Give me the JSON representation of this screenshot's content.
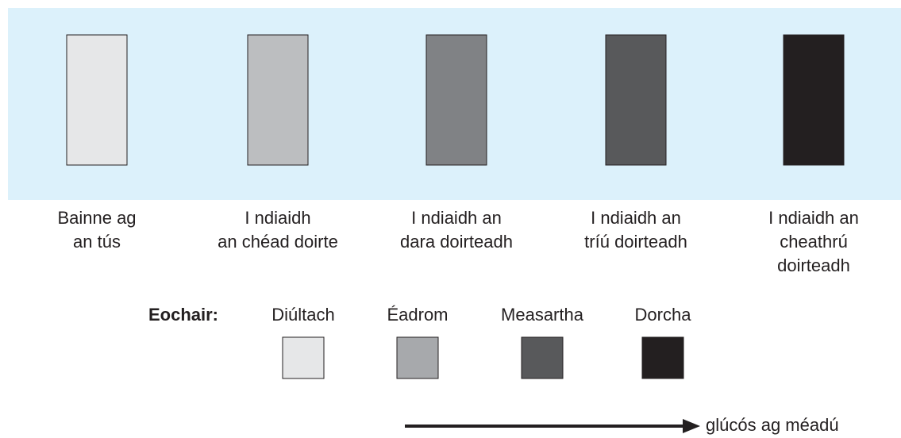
{
  "stages": [
    {
      "lines": [
        "Bainne ag",
        "an tús"
      ],
      "color": "#e6e7e8"
    },
    {
      "lines": [
        "I ndiaidh",
        "an chéad doirte"
      ],
      "color": "#bcbec0"
    },
    {
      "lines": [
        "I ndiaidh an",
        "dara doirteadh"
      ],
      "color": "#808285"
    },
    {
      "lines": [
        "I ndiaidh an",
        "tríú doirteadh"
      ],
      "color": "#58595b"
    },
    {
      "lines": [
        "I ndiaidh an",
        "cheathrú",
        "doirteadh"
      ],
      "color": "#231f20"
    }
  ],
  "key": {
    "title": "Eochair:",
    "items": [
      {
        "label": "Diúltach",
        "color": "#e6e7e8"
      },
      {
        "label": "Éadrom",
        "color": "#a7a9ac"
      },
      {
        "label": "Measartha",
        "color": "#58595b"
      },
      {
        "label": "Dorcha",
        "color": "#231f20"
      }
    ]
  },
  "arrow": {
    "label": "glúcós ag méadú"
  }
}
